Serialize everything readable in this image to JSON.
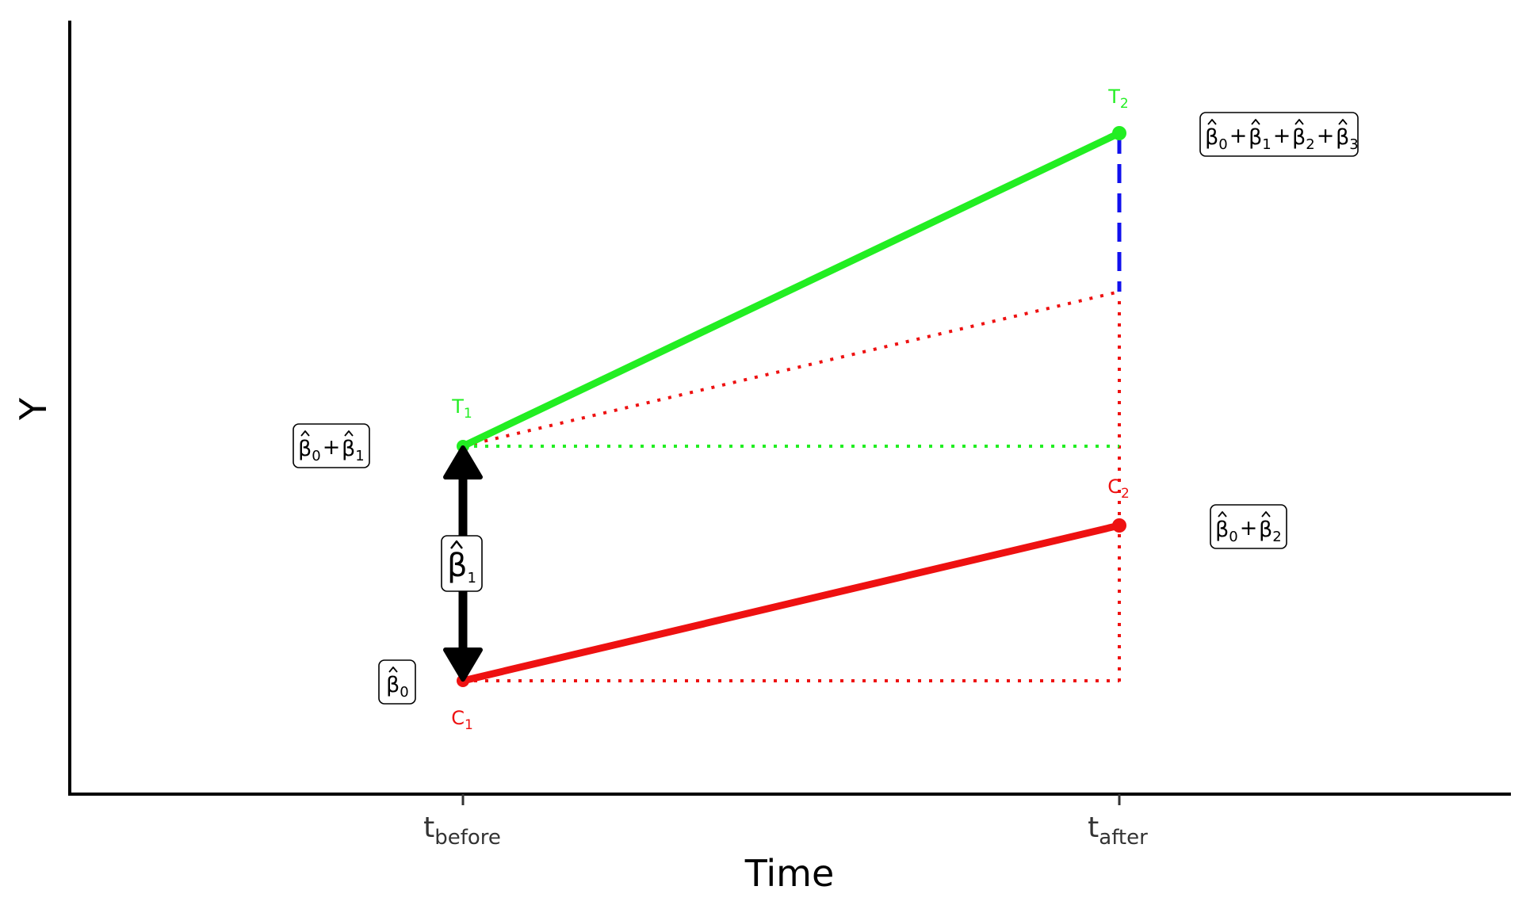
{
  "axes": {
    "ylabel": "Y",
    "xlabel": "Time",
    "ticks": [
      {
        "main": "t",
        "sub": "before"
      },
      {
        "main": "t",
        "sub": "after"
      }
    ]
  },
  "points": {
    "T1": {
      "main": "T",
      "sub": "1",
      "color": "#22ee22"
    },
    "T2": {
      "main": "T",
      "sub": "2",
      "color": "#22ee22"
    },
    "C1": {
      "main": "C",
      "sub": "1",
      "color": "#ee1111"
    },
    "C2": {
      "main": "C",
      "sub": "2",
      "color": "#ee1111"
    }
  },
  "equations": {
    "b0": {
      "symbol": "β",
      "subs": [
        "0"
      ],
      "plus": "+"
    },
    "b0b1": {
      "symbol": "β",
      "subs": [
        "0",
        "1"
      ],
      "plus": "+"
    },
    "b0b2": {
      "symbol": "β",
      "subs": [
        "0",
        "2"
      ],
      "plus": "+"
    },
    "b0b1b2b3": {
      "symbol": "β",
      "subs": [
        "0",
        "1",
        "2",
        "3"
      ],
      "plus": "+"
    },
    "b1": {
      "symbol": "β",
      "subs": [
        "1"
      ],
      "plus": "+"
    }
  },
  "colors": {
    "treatment": "#22ee22",
    "control": "#ee1111",
    "effect": "#1111ee",
    "arrow": "#000000"
  }
}
